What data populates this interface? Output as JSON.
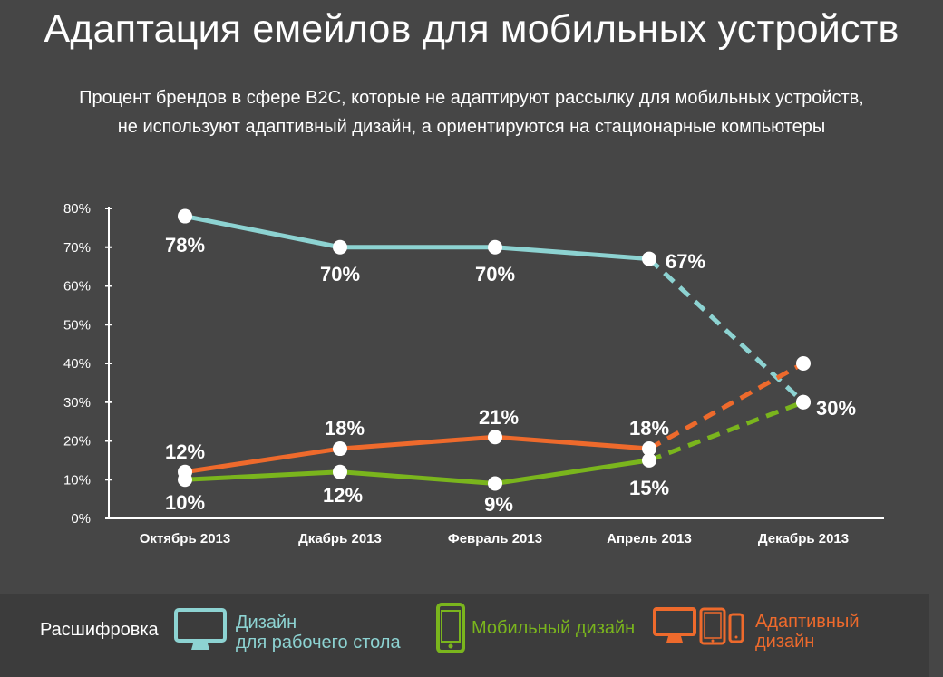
{
  "title": "Адаптация емейлов для мобильных устройств",
  "subtitle_line1": "Процент брендов в сфере B2C, которые не адаптируют рассылку для мобильных устройств,",
  "subtitle_line2": "не используют адаптивный дизайн, а ориентируются на стационарные компьютеры",
  "colors": {
    "desktop": "#8dd3d2",
    "mobile": "#7ab51d",
    "adaptive": "#ee6a2c",
    "background": "#464646",
    "legend_background": "#3c3c3c"
  },
  "chart_data": {
    "type": "line",
    "categories": [
      "Октябрь 2013",
      "Дкабрь 2013",
      "Февраль 2013",
      "Апрель 2013",
      "Декабрь 2013"
    ],
    "ylim": [
      0,
      80
    ],
    "y_ticks": [
      "0%",
      "10%",
      "20%",
      "30%",
      "40%",
      "50%",
      "60%",
      "70%",
      "80%"
    ],
    "grid": false,
    "note": "The last segment of each series (Апрель 2013 → Декабрь 2013) is drawn dashed.",
    "series": [
      {
        "key": "desktop",
        "values": [
          78,
          70,
          70,
          67,
          30
        ],
        "labels": [
          "78%",
          "70%",
          "70%",
          "67%",
          "30%"
        ]
      },
      {
        "key": "adaptive",
        "values": [
          12,
          18,
          21,
          18,
          40
        ],
        "labels": [
          "12%",
          "18%",
          "21%",
          "18%",
          ""
        ]
      },
      {
        "key": "mobile",
        "values": [
          10,
          12,
          9,
          15,
          30
        ],
        "labels": [
          "10%",
          "12%",
          "9%",
          "15%",
          ""
        ]
      }
    ]
  },
  "legend": {
    "title": "Расшифровка",
    "desktop_line1": "Дизайн",
    "desktop_line2": "для рабочего стола",
    "mobile": "Мобильный дизайн",
    "adaptive_line1": "Адаптивный",
    "adaptive_line2": "дизайн",
    "desktop_icon": "monitor-icon",
    "mobile_icon": "smartphone-icon",
    "adaptive_icons": [
      "monitor-icon",
      "tablet-icon",
      "smartphone-icon"
    ]
  }
}
